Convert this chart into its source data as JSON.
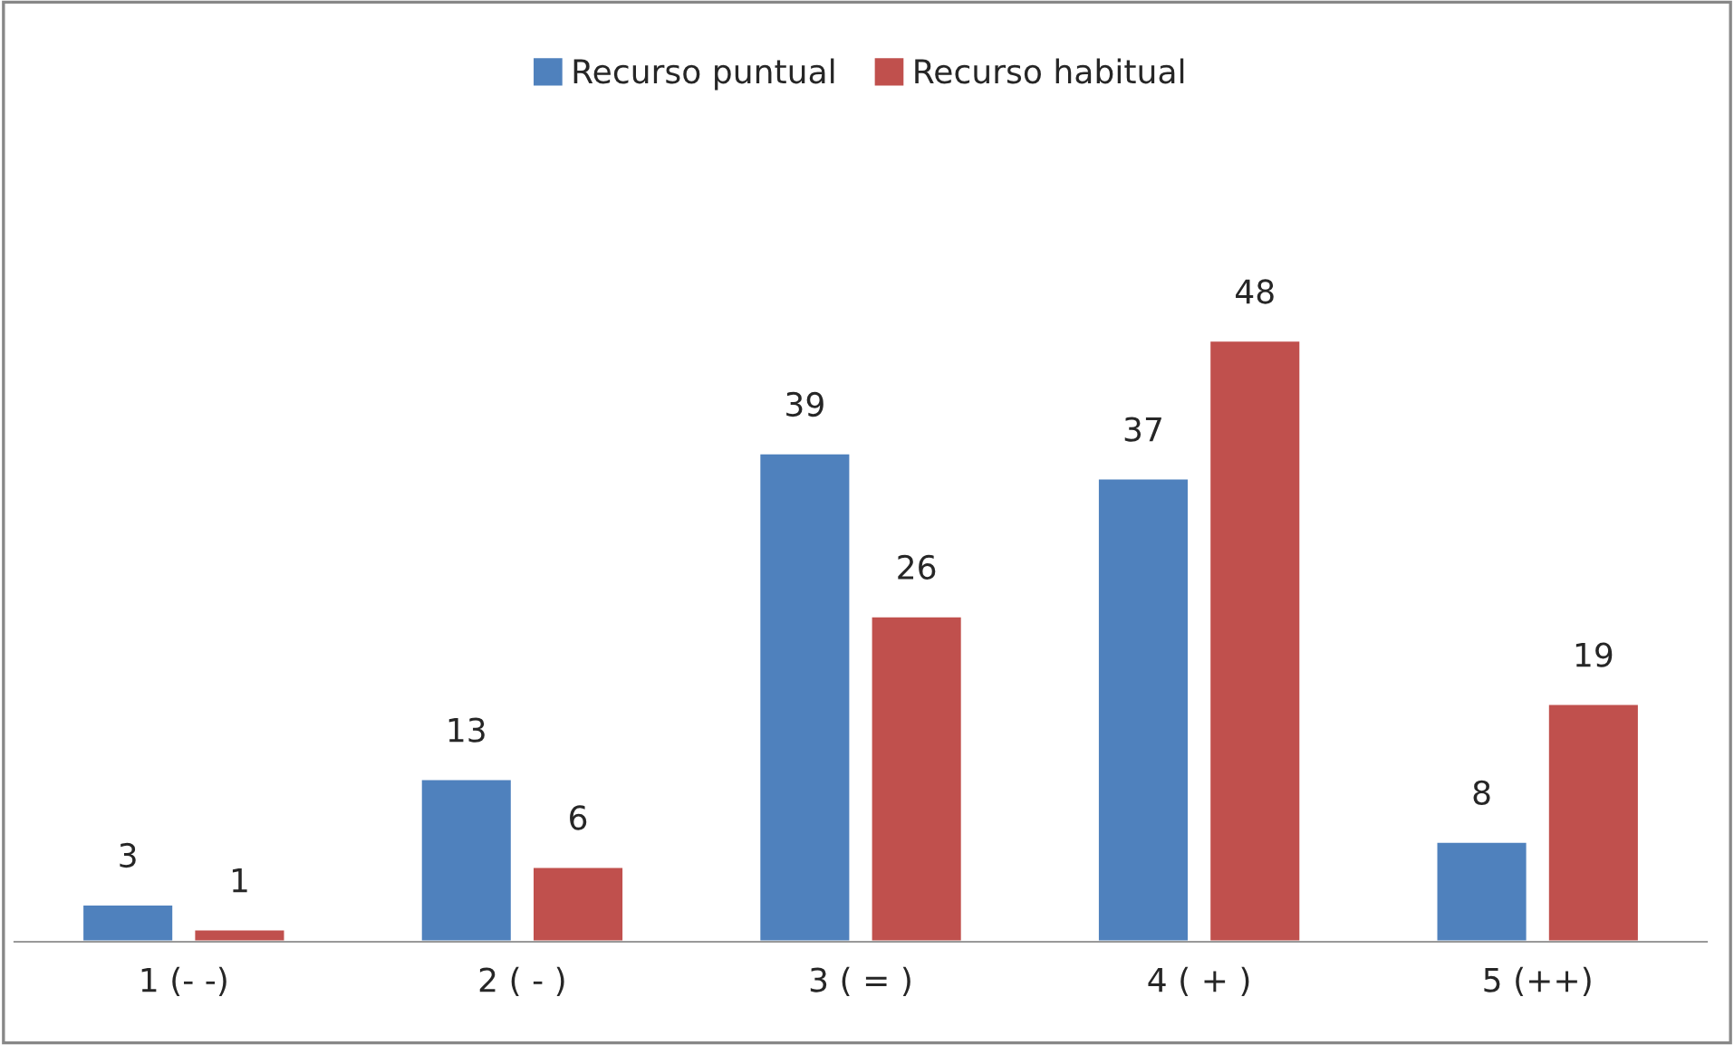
{
  "chart_data": {
    "type": "bar",
    "categories": [
      "1 (- -)",
      "2 ( - )",
      "3 ( = )",
      "4 ( + )",
      "5 (++)"
    ],
    "series": [
      {
        "name": "Recurso puntual",
        "color": "#4f81bd",
        "values": [
          3,
          13,
          39,
          37,
          8
        ]
      },
      {
        "name": "Recurso habitual",
        "color": "#c0504d",
        "values": [
          1,
          6,
          26,
          48,
          19
        ]
      }
    ],
    "data_labels": true,
    "legend": "top"
  }
}
